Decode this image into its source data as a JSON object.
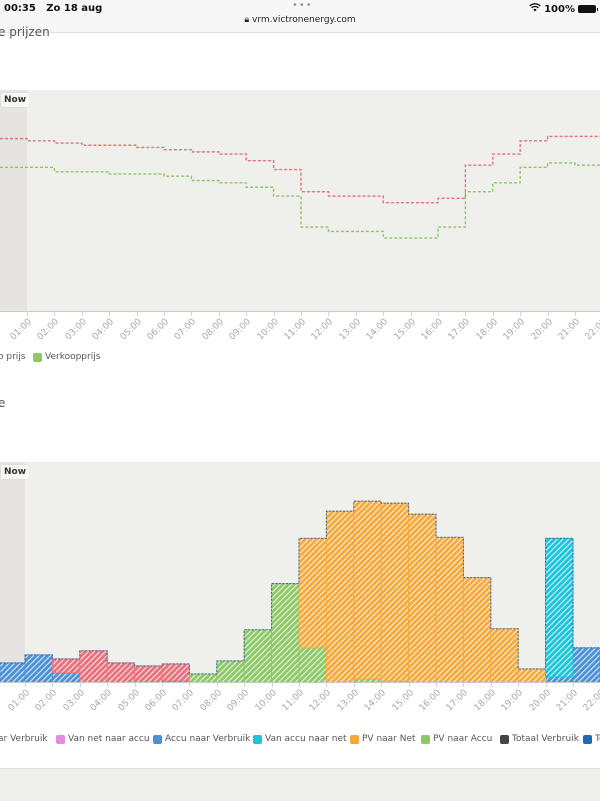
{
  "status_bar": {
    "time": "00:35",
    "date": "Zo 18 aug",
    "url": "vrm.victronenergy.com",
    "battery": "100%",
    "icons": [
      "lock-icon",
      "wifi-icon",
      "battery-icon",
      "more-dots-icon"
    ]
  },
  "price_section": {
    "title": "e prijzen",
    "now_label": "Now",
    "legend": [
      {
        "label": "o prijs",
        "color": "#e8707a"
      },
      {
        "label": "Verkoopprijs",
        "color": "#8cc865"
      }
    ]
  },
  "energy_section": {
    "title": "e",
    "now_label": "Now",
    "legend": [
      {
        "label": "ar Verbruik",
        "color": "#e8707a"
      },
      {
        "label": "Van net naar accu",
        "color": "#e58be0"
      },
      {
        "label": "Accu naar Verbruik",
        "color": "#4a90d6"
      },
      {
        "label": "Van accu naar net",
        "color": "#1cc4d9"
      },
      {
        "label": "PV naar Net",
        "color": "#f5a93a"
      },
      {
        "label": "PV naar Accu",
        "color": "#8cc865"
      },
      {
        "label": "Totaal Verbruik",
        "color": "#444444"
      },
      {
        "label": "Te",
        "color": "#1f6bb5"
      }
    ]
  },
  "chart_data": [
    {
      "type": "line",
      "step": true,
      "x_tick_labels": [
        "01:00",
        "02:00",
        "03:00",
        "04:00",
        "05:00",
        "06:00",
        "07:00",
        "08:00",
        "09:00",
        "10:00",
        "11:00",
        "12:00",
        "13:00",
        "14:00",
        "15:00",
        "16:00",
        "17:00",
        "18:00",
        "19:00",
        "20:00",
        "21:00",
        "22:00"
      ],
      "x_hours": [
        0,
        1,
        2,
        3,
        4,
        5,
        6,
        7,
        8,
        9,
        10,
        11,
        12,
        13,
        14,
        15,
        16,
        17,
        18,
        19,
        20,
        21
      ],
      "ylim": [
        0,
        1
      ],
      "grid": false,
      "legend_position": "bottom",
      "series": [
        {
          "name": "o prijs",
          "color": "#e8707a",
          "values": [
            0.78,
            0.77,
            0.76,
            0.75,
            0.75,
            0.74,
            0.73,
            0.72,
            0.71,
            0.68,
            0.64,
            0.54,
            0.52,
            0.52,
            0.49,
            0.49,
            0.51,
            0.66,
            0.71,
            0.77,
            0.79,
            0.79
          ]
        },
        {
          "name": "Verkoopprijs",
          "color": "#8cc865",
          "values": [
            0.65,
            0.65,
            0.63,
            0.63,
            0.62,
            0.62,
            0.61,
            0.59,
            0.58,
            0.56,
            0.52,
            0.38,
            0.36,
            0.36,
            0.33,
            0.33,
            0.38,
            0.54,
            0.58,
            0.65,
            0.67,
            0.66
          ]
        }
      ]
    },
    {
      "type": "bar",
      "stacked": true,
      "hatched": true,
      "x_tick_labels": [
        "01:00",
        "02:00",
        "03:00",
        "04:00",
        "05:00",
        "06:00",
        "07:00",
        "08:00",
        "09:00",
        "10:00",
        "11:00",
        "12:00",
        "13:00",
        "14:00",
        "15:00",
        "16:00",
        "17:00",
        "18:00",
        "19:00",
        "20:00",
        "21:00",
        "22:00"
      ],
      "x_hours": [
        0,
        1,
        2,
        3,
        4,
        5,
        6,
        7,
        8,
        9,
        10,
        11,
        12,
        13,
        14,
        15,
        16,
        17,
        18,
        19,
        20,
        21
      ],
      "ylim": [
        0,
        2.2
      ],
      "grid": false,
      "legend_position": "bottom",
      "series": [
        {
          "name": "Accu naar Verbruik",
          "color": "#4a90d6",
          "values": [
            0.2,
            0.28,
            0.1,
            0,
            0,
            0,
            0.02,
            0,
            0,
            0,
            0,
            0,
            0,
            0,
            0,
            0,
            0,
            0,
            0,
            0,
            0.06,
            0.35
          ]
        },
        {
          "name": "ar Verbruik",
          "color": "#e8707a",
          "values": [
            0,
            0,
            0.14,
            0.32,
            0.2,
            0.17,
            0.17,
            0,
            0,
            0,
            0,
            0,
            0,
            0,
            0,
            0,
            0,
            0,
            0,
            0,
            0,
            0
          ]
        },
        {
          "name": "PV naar Accu",
          "color": "#8cc865",
          "values": [
            0,
            0,
            0,
            0,
            0,
            0,
            0,
            0.09,
            0.22,
            0.53,
            0.99,
            0.35,
            0,
            0.04,
            0.02,
            0,
            0,
            0,
            0,
            0,
            0,
            0
          ]
        },
        {
          "name": "PV naar Net",
          "color": "#f5a93a",
          "values": [
            0,
            0,
            0,
            0,
            0,
            0,
            0,
            0,
            0,
            0,
            0,
            1.09,
            1.71,
            1.77,
            1.77,
            1.68,
            1.45,
            1.05,
            0.54,
            0.14,
            0,
            0
          ]
        },
        {
          "name": "Van accu naar net",
          "color": "#1cc4d9",
          "values": [
            0,
            0,
            0,
            0,
            0,
            0,
            0,
            0,
            0,
            0,
            0,
            0,
            0,
            0,
            0,
            0,
            0,
            0,
            0,
            0,
            1.38,
            0
          ]
        }
      ]
    }
  ]
}
